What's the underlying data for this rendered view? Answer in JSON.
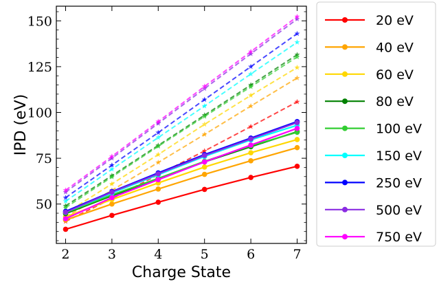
{
  "chart_data": {
    "type": "line",
    "title": "",
    "xlabel": "Charge State",
    "ylabel": "IPD (eV)",
    "x": [
      2,
      3,
      4,
      5,
      6,
      7
    ],
    "xlim": [
      1.8,
      7.2
    ],
    "ylim": [
      28.5,
      158
    ],
    "xticks": [
      "2",
      "3",
      "4",
      "5",
      "6",
      "7"
    ],
    "yticks": [
      50,
      75,
      100,
      125,
      150
    ],
    "ytick_labels": [
      "50",
      "75",
      "100",
      "125",
      "150"
    ],
    "grid": false,
    "legend_position": "outside-right",
    "series": [
      {
        "name": "20 eV",
        "color": "#ff0000",
        "solid": [
          36.2,
          43.8,
          51.0,
          58.0,
          64.5,
          70.6
        ],
        "dashed": [
          40.5,
          53.0,
          66.0,
          79.0,
          92.3,
          105.8
        ]
      },
      {
        "name": "40 eV",
        "color": "#ffa500",
        "solid": [
          41.3,
          50.0,
          58.2,
          66.2,
          73.6,
          80.8
        ],
        "dashed": [
          43.0,
          57.5,
          72.7,
          88.0,
          103.5,
          118.8
        ]
      },
      {
        "name": "60 eV",
        "color": "#ffd700",
        "solid": [
          43.0,
          52.5,
          61.5,
          70.2,
          78.0,
          85.2
        ],
        "dashed": [
          45.0,
          61.0,
          77.0,
          93.5,
          109.3,
          124.5
        ]
      },
      {
        "name": "80 eV",
        "color": "#008000",
        "solid": [
          44.8,
          54.5,
          63.8,
          73.0,
          81.3,
          89.5
        ],
        "dashed": [
          49.0,
          65.5,
          82.0,
          98.5,
          115.0,
          131.5
        ]
      },
      {
        "name": "100 eV",
        "color": "#32cd32",
        "solid": [
          45.3,
          55.0,
          64.0,
          73.3,
          81.8,
          89.2
        ],
        "dashed": [
          48.0,
          64.8,
          81.5,
          97.8,
          114.0,
          130.3
        ]
      },
      {
        "name": "150 eV",
        "color": "#00ffff",
        "solid": [
          45.5,
          56.0,
          66.0,
          76.0,
          85.0,
          93.0
        ],
        "dashed": [
          51.5,
          69.0,
          86.3,
          103.5,
          121.0,
          138.3
        ]
      },
      {
        "name": "250 eV",
        "color": "#0000ff",
        "solid": [
          46.0,
          56.8,
          67.0,
          77.0,
          86.0,
          95.0
        ],
        "dashed": [
          53.5,
          71.2,
          89.0,
          107.0,
          125.0,
          143.0
        ]
      },
      {
        "name": "500 eV",
        "color": "#8a2be2",
        "solid": [
          45.5,
          56.5,
          66.5,
          76.5,
          85.5,
          94.5
        ],
        "dashed": [
          56.5,
          75.0,
          94.0,
          113.0,
          132.0,
          151.0
        ]
      },
      {
        "name": "750 eV",
        "color": "#ff00ff",
        "solid": [
          42.0,
          53.5,
          63.3,
          73.0,
          82.2,
          91.3
        ],
        "dashed": [
          57.5,
          76.0,
          95.0,
          114.2,
          133.2,
          152.3
        ]
      }
    ]
  }
}
